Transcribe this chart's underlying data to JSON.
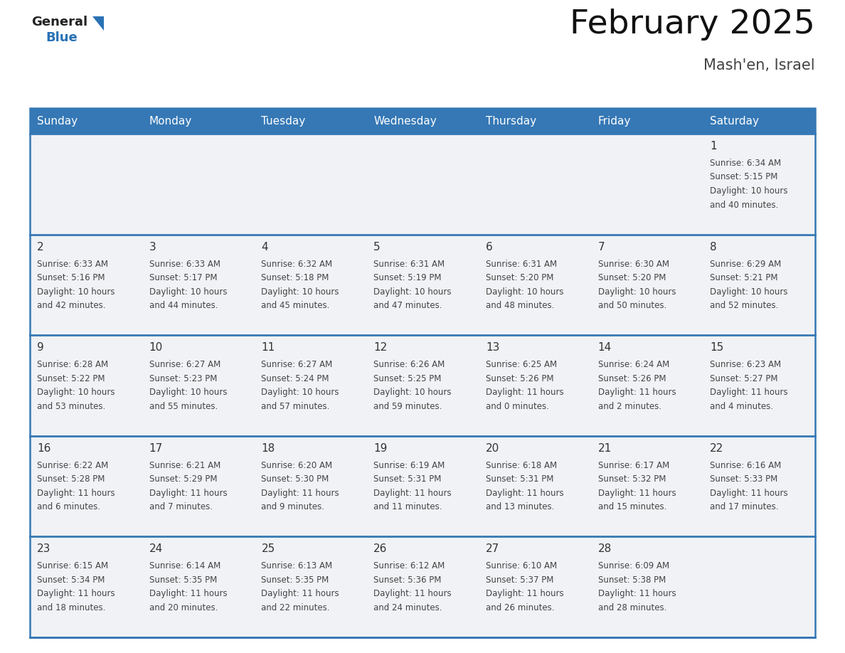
{
  "title": "February 2025",
  "subtitle": "Mash'en, Israel",
  "days_of_week": [
    "Sunday",
    "Monday",
    "Tuesday",
    "Wednesday",
    "Thursday",
    "Friday",
    "Saturday"
  ],
  "header_bg": "#3578b5",
  "header_text": "#ffffff",
  "row_bg": "#f0f2f5",
  "border_color": "#3578b5",
  "day_num_color": "#333333",
  "cell_text_color": "#444444",
  "title_color": "#111111",
  "subtitle_color": "#444444",
  "logo_text_color": "#222222",
  "logo_blue_color": "#2a72b5",
  "weeks": [
    [
      {
        "day": null,
        "sunrise": null,
        "sunset": null,
        "daylight": null
      },
      {
        "day": null,
        "sunrise": null,
        "sunset": null,
        "daylight": null
      },
      {
        "day": null,
        "sunrise": null,
        "sunset": null,
        "daylight": null
      },
      {
        "day": null,
        "sunrise": null,
        "sunset": null,
        "daylight": null
      },
      {
        "day": null,
        "sunrise": null,
        "sunset": null,
        "daylight": null
      },
      {
        "day": null,
        "sunrise": null,
        "sunset": null,
        "daylight": null
      },
      {
        "day": 1,
        "sunrise": "6:34 AM",
        "sunset": "5:15 PM",
        "daylight": "10 hours\nand 40 minutes."
      }
    ],
    [
      {
        "day": 2,
        "sunrise": "6:33 AM",
        "sunset": "5:16 PM",
        "daylight": "10 hours\nand 42 minutes."
      },
      {
        "day": 3,
        "sunrise": "6:33 AM",
        "sunset": "5:17 PM",
        "daylight": "10 hours\nand 44 minutes."
      },
      {
        "day": 4,
        "sunrise": "6:32 AM",
        "sunset": "5:18 PM",
        "daylight": "10 hours\nand 45 minutes."
      },
      {
        "day": 5,
        "sunrise": "6:31 AM",
        "sunset": "5:19 PM",
        "daylight": "10 hours\nand 47 minutes."
      },
      {
        "day": 6,
        "sunrise": "6:31 AM",
        "sunset": "5:20 PM",
        "daylight": "10 hours\nand 48 minutes."
      },
      {
        "day": 7,
        "sunrise": "6:30 AM",
        "sunset": "5:20 PM",
        "daylight": "10 hours\nand 50 minutes."
      },
      {
        "day": 8,
        "sunrise": "6:29 AM",
        "sunset": "5:21 PM",
        "daylight": "10 hours\nand 52 minutes."
      }
    ],
    [
      {
        "day": 9,
        "sunrise": "6:28 AM",
        "sunset": "5:22 PM",
        "daylight": "10 hours\nand 53 minutes."
      },
      {
        "day": 10,
        "sunrise": "6:27 AM",
        "sunset": "5:23 PM",
        "daylight": "10 hours\nand 55 minutes."
      },
      {
        "day": 11,
        "sunrise": "6:27 AM",
        "sunset": "5:24 PM",
        "daylight": "10 hours\nand 57 minutes."
      },
      {
        "day": 12,
        "sunrise": "6:26 AM",
        "sunset": "5:25 PM",
        "daylight": "10 hours\nand 59 minutes."
      },
      {
        "day": 13,
        "sunrise": "6:25 AM",
        "sunset": "5:26 PM",
        "daylight": "11 hours\nand 0 minutes."
      },
      {
        "day": 14,
        "sunrise": "6:24 AM",
        "sunset": "5:26 PM",
        "daylight": "11 hours\nand 2 minutes."
      },
      {
        "day": 15,
        "sunrise": "6:23 AM",
        "sunset": "5:27 PM",
        "daylight": "11 hours\nand 4 minutes."
      }
    ],
    [
      {
        "day": 16,
        "sunrise": "6:22 AM",
        "sunset": "5:28 PM",
        "daylight": "11 hours\nand 6 minutes."
      },
      {
        "day": 17,
        "sunrise": "6:21 AM",
        "sunset": "5:29 PM",
        "daylight": "11 hours\nand 7 minutes."
      },
      {
        "day": 18,
        "sunrise": "6:20 AM",
        "sunset": "5:30 PM",
        "daylight": "11 hours\nand 9 minutes."
      },
      {
        "day": 19,
        "sunrise": "6:19 AM",
        "sunset": "5:31 PM",
        "daylight": "11 hours\nand 11 minutes."
      },
      {
        "day": 20,
        "sunrise": "6:18 AM",
        "sunset": "5:31 PM",
        "daylight": "11 hours\nand 13 minutes."
      },
      {
        "day": 21,
        "sunrise": "6:17 AM",
        "sunset": "5:32 PM",
        "daylight": "11 hours\nand 15 minutes."
      },
      {
        "day": 22,
        "sunrise": "6:16 AM",
        "sunset": "5:33 PM",
        "daylight": "11 hours\nand 17 minutes."
      }
    ],
    [
      {
        "day": 23,
        "sunrise": "6:15 AM",
        "sunset": "5:34 PM",
        "daylight": "11 hours\nand 18 minutes."
      },
      {
        "day": 24,
        "sunrise": "6:14 AM",
        "sunset": "5:35 PM",
        "daylight": "11 hours\nand 20 minutes."
      },
      {
        "day": 25,
        "sunrise": "6:13 AM",
        "sunset": "5:35 PM",
        "daylight": "11 hours\nand 22 minutes."
      },
      {
        "day": 26,
        "sunrise": "6:12 AM",
        "sunset": "5:36 PM",
        "daylight": "11 hours\nand 24 minutes."
      },
      {
        "day": 27,
        "sunrise": "6:10 AM",
        "sunset": "5:37 PM",
        "daylight": "11 hours\nand 26 minutes."
      },
      {
        "day": 28,
        "sunrise": "6:09 AM",
        "sunset": "5:38 PM",
        "daylight": "11 hours\nand 28 minutes."
      },
      {
        "day": null,
        "sunrise": null,
        "sunset": null,
        "daylight": null
      }
    ]
  ]
}
